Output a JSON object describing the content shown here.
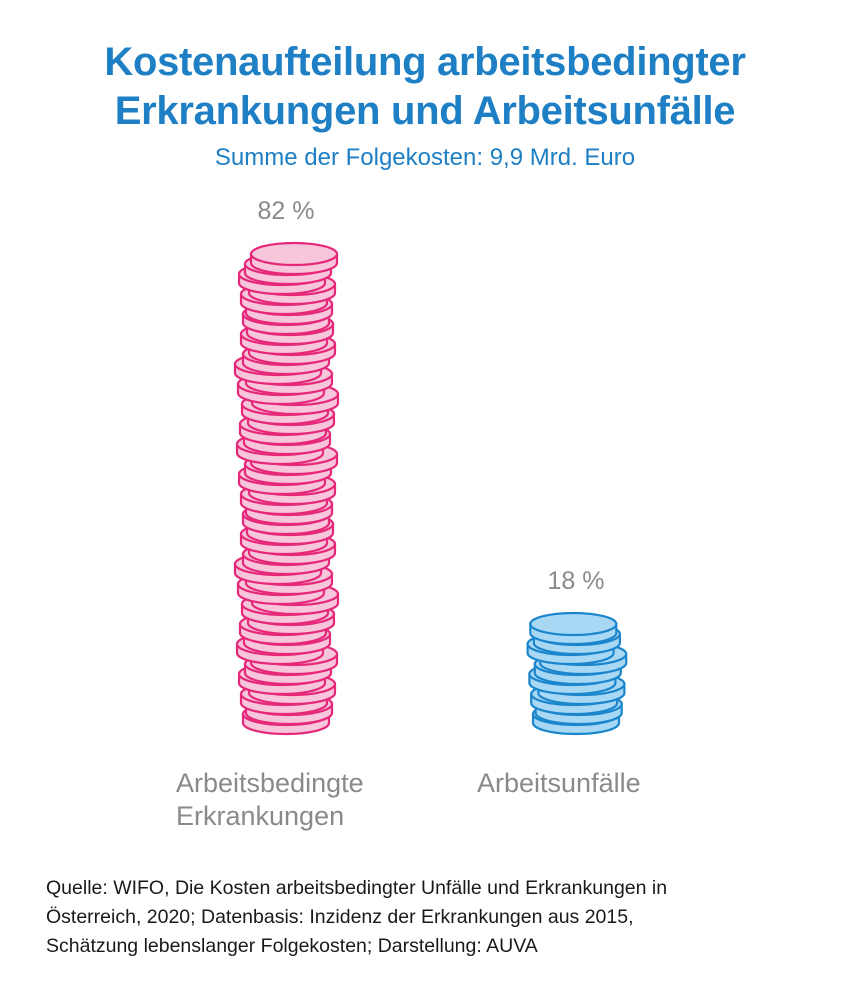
{
  "header": {
    "title_line1": "Kostenaufteilung arbeitsbedingter",
    "title_line2": "Erkrankungen und Arbeitsunfälle",
    "subtitle": "Summe der Folgekosten: 9,9 Mrd. Euro"
  },
  "chart_data": {
    "type": "bar",
    "categories": [
      "Arbeitsbedingte Erkrankungen",
      "Arbeitsunfälle"
    ],
    "category_label_lines": [
      [
        "Arbeitsbedingte",
        "Erkrankungen"
      ],
      [
        "Arbeitsunfälle"
      ]
    ],
    "values": [
      82,
      18
    ],
    "value_labels": [
      "82 %",
      "18 %"
    ],
    "unit": "%",
    "style": "stacked coins",
    "colors": {
      "erkrankungen_fill": "#f7c6da",
      "erkrankungen_stroke": "#e6287b",
      "unfaelle_fill": "#a9d8f5",
      "unfaelle_stroke": "#1b86cc",
      "value_label": "#8a8a8a"
    }
  },
  "footer": {
    "source_line1": "Quelle: WIFO, Die Kosten arbeitsbedingter Unfälle und Erkrankungen in",
    "source_line2": "Österreich, 2020; Datenbasis: Inzidenz der Erkrankungen aus 2015,",
    "source_line3": "Schätzung lebenslanger Folgekosten; Darstellung: AUVA"
  }
}
